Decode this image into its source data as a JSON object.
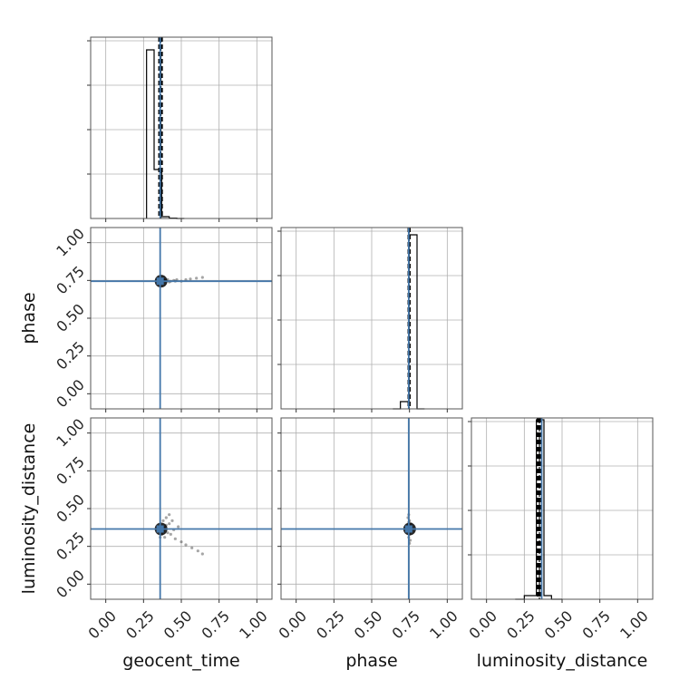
{
  "chart_data": {
    "type": "scatter",
    "parameters": [
      "geocent_time",
      "phase",
      "luminosity_distance"
    ],
    "tick_values": [
      0.0,
      0.25,
      0.5,
      0.75,
      1.0
    ],
    "tick_labels": [
      "0.00",
      "0.25",
      "0.50",
      "0.75",
      "1.00"
    ],
    "xlim": [
      -0.1,
      1.1
    ],
    "ylim": [
      -0.1,
      1.1
    ],
    "grid": true,
    "truths": {
      "geocent_time": 0.36,
      "phase": 0.745,
      "luminosity_distance": 0.365
    },
    "histograms": {
      "geocent_time": {
        "edges": [
          0.27,
          0.32,
          0.37,
          0.42,
          0.47,
          0.52
        ],
        "values": [
          0.93,
          0.27,
          0.01,
          0.002,
          0.0
        ],
        "quantiles": [
          0.355,
          0.36,
          0.365,
          0.37
        ],
        "median": 0.365
      },
      "phase": {
        "edges": [
          0.64,
          0.69,
          0.745,
          0.8,
          0.85
        ],
        "values": [
          0.0,
          0.04,
          0.96,
          0.0
        ],
        "quantiles": [
          0.745,
          0.75
        ],
        "median": 0.748
      },
      "luminosity_distance": {
        "edges": [
          0.19,
          0.25,
          0.33,
          0.38,
          0.43,
          0.5
        ],
        "values": [
          0.0,
          0.02,
          0.99,
          0.02,
          0.0
        ],
        "quantiles": [
          0.34,
          0.345,
          0.35,
          0.355,
          0.36
        ],
        "median": 0.35
      }
    },
    "scatter": [
      {
        "x_param": "geocent_time",
        "y_param": "phase",
        "points": [
          [
            0.34,
            0.76
          ],
          [
            0.35,
            0.76
          ],
          [
            0.35,
            0.745
          ],
          [
            0.36,
            0.76
          ],
          [
            0.37,
            0.75
          ],
          [
            0.38,
            0.755
          ],
          [
            0.39,
            0.75
          ],
          [
            0.4,
            0.745
          ],
          [
            0.41,
            0.755
          ],
          [
            0.43,
            0.745
          ],
          [
            0.45,
            0.75
          ],
          [
            0.47,
            0.755
          ],
          [
            0.5,
            0.745
          ],
          [
            0.53,
            0.755
          ],
          [
            0.56,
            0.76
          ],
          [
            0.6,
            0.765
          ],
          [
            0.64,
            0.77
          ],
          [
            0.36,
            0.745
          ],
          [
            0.37,
            0.74
          ],
          [
            0.38,
            0.745
          ],
          [
            0.42,
            0.74
          ],
          [
            0.46,
            0.745
          ]
        ]
      },
      {
        "x_param": "geocent_time",
        "y_param": "luminosity_distance",
        "points": [
          [
            0.35,
            0.37
          ],
          [
            0.36,
            0.36
          ],
          [
            0.37,
            0.38
          ],
          [
            0.38,
            0.35
          ],
          [
            0.39,
            0.37
          ],
          [
            0.4,
            0.39
          ],
          [
            0.41,
            0.34
          ],
          [
            0.42,
            0.4
          ],
          [
            0.43,
            0.33
          ],
          [
            0.44,
            0.42
          ],
          [
            0.45,
            0.36
          ],
          [
            0.46,
            0.3
          ],
          [
            0.48,
            0.38
          ],
          [
            0.5,
            0.28
          ],
          [
            0.53,
            0.26
          ],
          [
            0.57,
            0.24
          ],
          [
            0.61,
            0.22
          ],
          [
            0.64,
            0.2
          ],
          [
            0.36,
            0.31
          ],
          [
            0.38,
            0.42
          ],
          [
            0.4,
            0.44
          ],
          [
            0.42,
            0.46
          ],
          [
            0.37,
            0.33
          ],
          [
            0.39,
            0.31
          ]
        ]
      },
      {
        "x_param": "phase",
        "y_param": "luminosity_distance",
        "points": [
          [
            0.74,
            0.37
          ],
          [
            0.745,
            0.36
          ],
          [
            0.75,
            0.38
          ],
          [
            0.755,
            0.35
          ],
          [
            0.74,
            0.39
          ],
          [
            0.75,
            0.33
          ],
          [
            0.745,
            0.41
          ],
          [
            0.76,
            0.37
          ],
          [
            0.735,
            0.35
          ],
          [
            0.75,
            0.42
          ],
          [
            0.745,
            0.31
          ],
          [
            0.755,
            0.29
          ],
          [
            0.74,
            0.44
          ],
          [
            0.76,
            0.4
          ],
          [
            0.73,
            0.37
          ],
          [
            0.75,
            0.27
          ],
          [
            0.745,
            0.46
          ]
        ]
      }
    ]
  }
}
